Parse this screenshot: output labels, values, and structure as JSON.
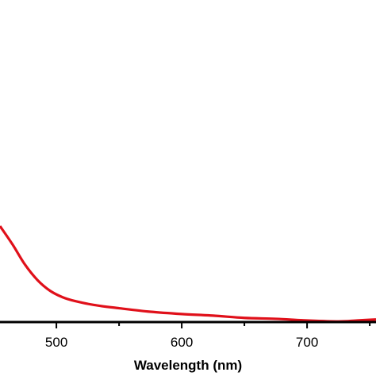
{
  "chart_data": {
    "type": "line",
    "title": "",
    "xlabel": "Wavelength (nm)",
    "ylabel": "",
    "xlim": [
      455,
      755
    ],
    "ylim": [
      0,
      1
    ],
    "grid": false,
    "x_ticks": [
      500,
      600,
      700
    ],
    "x_minor_ticks": [
      550,
      650,
      750
    ],
    "series": [
      {
        "color": "#e0101a",
        "x": [
          455,
          465,
          475,
          485,
          495,
          505,
          515,
          530,
          550,
          575,
          600,
          625,
          650,
          675,
          700,
          725,
          740,
          755
        ],
        "y": [
          0.298,
          0.241,
          0.178,
          0.13,
          0.097,
          0.077,
          0.065,
          0.053,
          0.043,
          0.032,
          0.025,
          0.02,
          0.013,
          0.01,
          0.005,
          0.002,
          0.005,
          0.008
        ]
      }
    ]
  }
}
